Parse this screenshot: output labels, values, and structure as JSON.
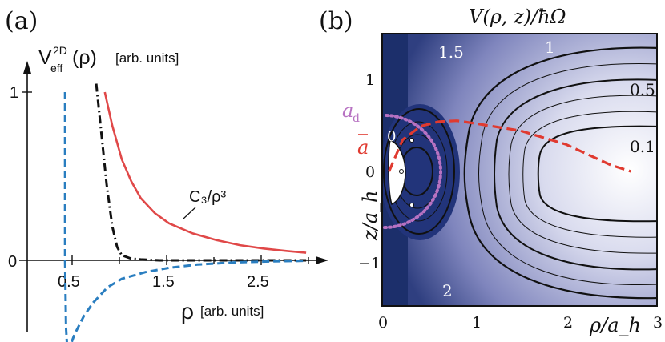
{
  "panel_a": {
    "panel_label": "(a)",
    "ylabel": "V_eff^2D(ρ)",
    "ylabel_unit": "[arb. units]",
    "xlabel": "ρ",
    "xlabel_unit": "[arb. units]",
    "y_ticks": [
      "1",
      "0"
    ],
    "x_ticks": [
      "0.5",
      "1.5",
      "2.5"
    ],
    "annotation": "C₃/ρ³",
    "colors": {
      "red": "#e04848",
      "blue": "#2a7ec0",
      "black": "#111111"
    }
  },
  "panel_b": {
    "panel_label": "(b)",
    "title": "V(ρ, z)/ħΩ",
    "xlabel": "ρ/a_h",
    "ylabel": "z/a_h",
    "x_ticks": [
      "0",
      "1",
      "2",
      "3"
    ],
    "y_ticks": [
      "1",
      "0",
      "−1"
    ],
    "contour_labels": [
      "1.5",
      "1",
      "0.5",
      "0.1",
      "0",
      "2"
    ],
    "legend_ad": "a_d",
    "legend_abar": "ā",
    "colors": {
      "dark": "#1c2f6b",
      "light": "#ffffff",
      "dashed": "#e03a30",
      "dotted": "#b772c2"
    }
  },
  "chart_data": [
    {
      "type": "line",
      "title": "",
      "xlabel": "ρ [arb. units]",
      "ylabel": "V_eff^2D(ρ) [arb. units]",
      "xlim": [
        0,
        3
      ],
      "ylim": [
        -0.6,
        1
      ],
      "series": [
        {
          "name": "C₃/ρ³",
          "x": [
            0.82,
            0.9,
            1.0,
            1.1,
            1.2,
            1.35,
            1.5,
            1.75,
            2.0,
            2.25,
            2.5,
            2.75,
            2.95
          ],
          "y": [
            1.0,
            0.8,
            0.6,
            0.47,
            0.37,
            0.28,
            0.22,
            0.16,
            0.12,
            0.09,
            0.07,
            0.055,
            0.045
          ]
        },
        {
          "x": [
            0.73,
            0.78,
            0.84,
            0.9,
            0.95,
            1.0,
            1.1,
            1.2,
            1.4,
            1.8,
            2.4,
            2.95
          ],
          "y": [
            1.05,
            0.78,
            0.45,
            0.2,
            0.08,
            0.03,
            0.01,
            0.005,
            0.0,
            0.0,
            0.0,
            0.0
          ]
        },
        {
          "x": [
            0.4,
            0.4,
            0.41,
            0.42,
            0.44,
            0.46,
            0.5,
            0.6,
            0.7,
            0.85,
            1.0,
            1.25,
            1.5,
            1.8,
            2.2,
            2.6,
            2.95
          ],
          "y": [
            1.0,
            0.0,
            -0.4,
            -0.5,
            -0.54,
            -0.5,
            -0.44,
            -0.33,
            -0.25,
            -0.16,
            -0.11,
            -0.07,
            -0.045,
            -0.025,
            -0.012,
            -0.006,
            -0.003
          ]
        }
      ]
    },
    {
      "type": "heatmap",
      "title": "V(ρ, z)/ħΩ",
      "xlabel": "ρ/a_h",
      "ylabel": "z/a_h",
      "xlim": [
        0,
        3
      ],
      "ylim": [
        -1.8,
        1.5
      ],
      "contour_levels": [
        2,
        1.5,
        1,
        0.5,
        0.1,
        0
      ],
      "series": [
        {
          "name": "ā",
          "x": [
            0.05,
            0.2,
            0.4,
            0.6,
            0.8,
            1.0,
            1.5,
            2.0,
            2.5,
            2.72
          ],
          "y": [
            0.0,
            0.35,
            0.5,
            0.55,
            0.56,
            0.53,
            0.45,
            0.3,
            0.07,
            0.0
          ]
        },
        {
          "name": "a_d",
          "radius": 0.62
        }
      ]
    }
  ]
}
